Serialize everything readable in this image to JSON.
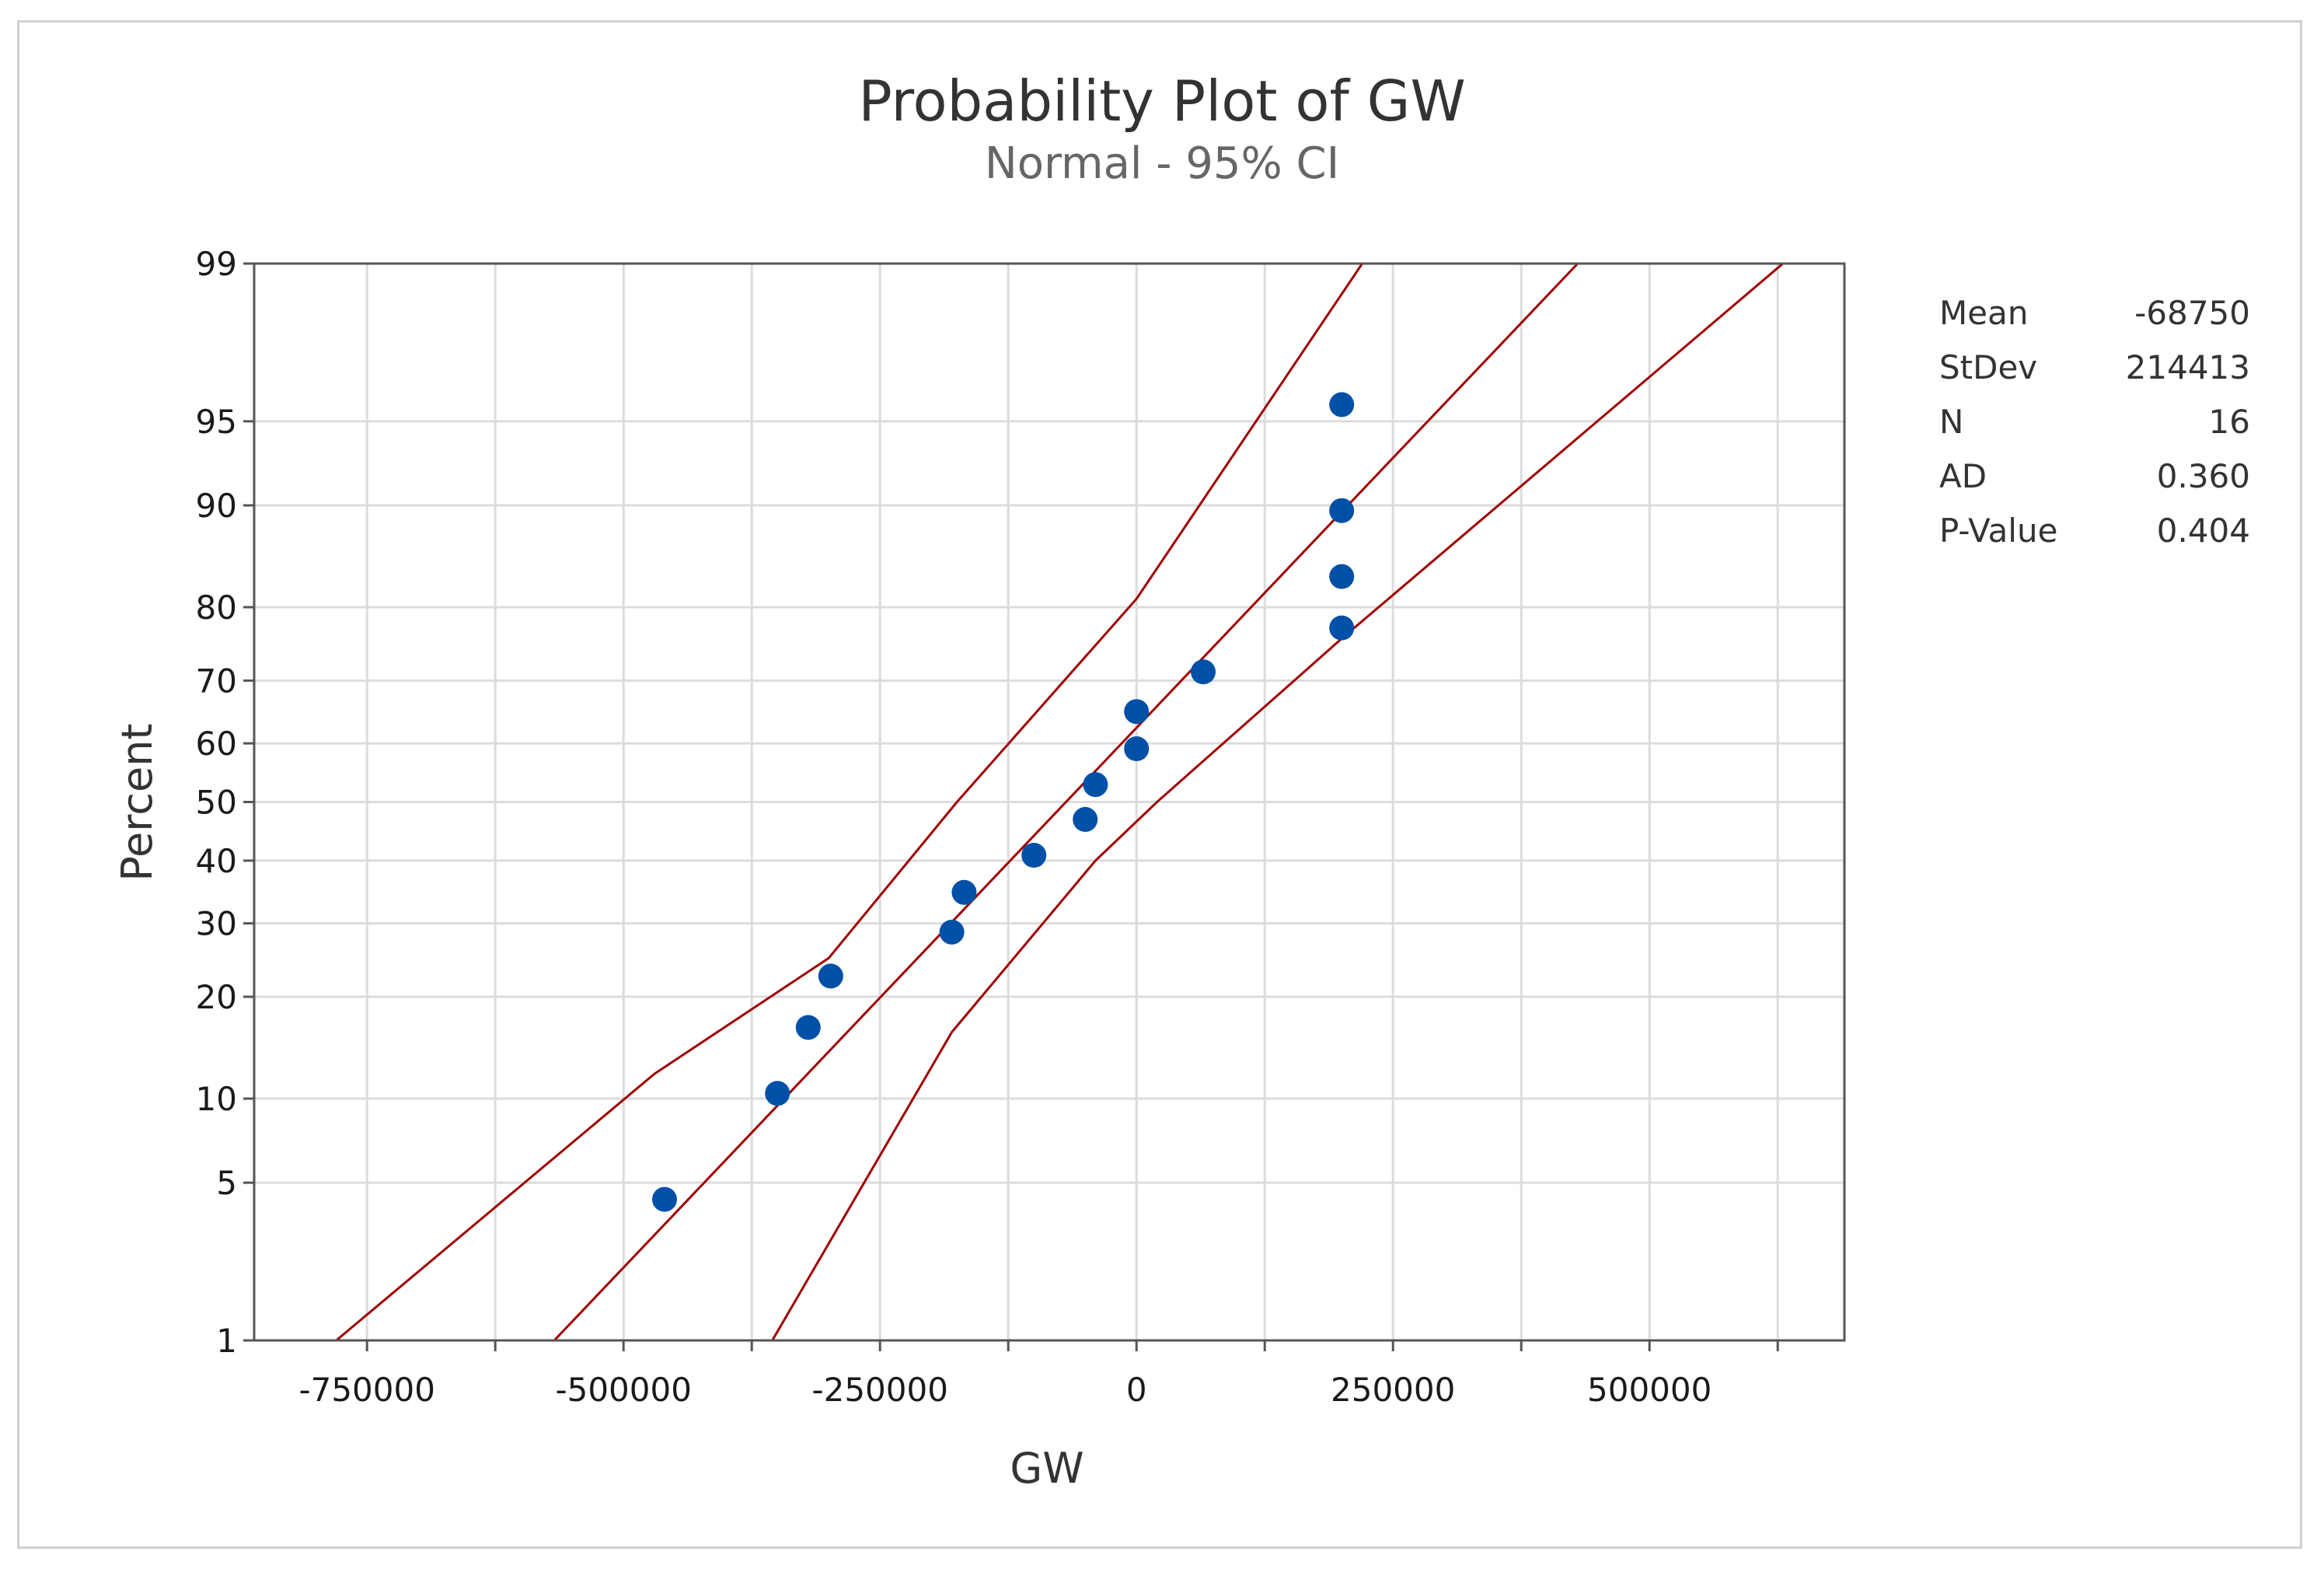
{
  "chart_data": {
    "type": "scatter",
    "title": "Probability Plot of GW",
    "subtitle": "Normal - 95% CI",
    "xlabel": "GW",
    "ylabel": "Percent",
    "y_scale": "normal-probability",
    "xlim": [
      -860000,
      690000
    ],
    "ylim": [
      1,
      99
    ],
    "x_ticks": [
      -750000,
      -500000,
      -250000,
      0,
      250000,
      500000
    ],
    "x_tick_labels": [
      "-750000",
      "-500000",
      "-250000",
      "0",
      "250000",
      "500000"
    ],
    "y_ticks": [
      1,
      5,
      10,
      20,
      30,
      40,
      50,
      60,
      70,
      80,
      90,
      95,
      99
    ],
    "y_tick_labels": [
      "1",
      "5",
      "10",
      "20",
      "30",
      "40",
      "50",
      "60",
      "70",
      "80",
      "90",
      "95",
      "99"
    ],
    "grid": true,
    "series": [
      {
        "points": [
          {
            "x": -460000,
            "y": 4.3
          },
          {
            "x": -350000,
            "y": 10.4
          },
          {
            "x": -320000,
            "y": 16.5
          },
          {
            "x": -298000,
            "y": 22.6
          },
          {
            "x": -180000,
            "y": 28.7
          },
          {
            "x": -168000,
            "y": 34.8
          },
          {
            "x": -100000,
            "y": 40.9
          },
          {
            "x": -50000,
            "y": 47.0
          },
          {
            "x": -40000,
            "y": 53.0
          },
          {
            "x": 0,
            "y": 59.1
          },
          {
            "x": 0,
            "y": 65.2
          },
          {
            "x": 65000,
            "y": 71.3
          },
          {
            "x": 200000,
            "y": 77.4
          },
          {
            "x": 200000,
            "y": 83.5
          },
          {
            "x": 200000,
            "y": 89.6
          },
          {
            "x": 200000,
            "y": 95.7
          }
        ],
        "color": "#0050a8"
      }
    ],
    "fit_line": {
      "x_at_p1": -567500,
      "x_at_p99": 430000,
      "color": "#a00000"
    },
    "ci_lower_band": [
      [
        -780000,
        1
      ],
      [
        -470000,
        12
      ],
      [
        -300000,
        25
      ],
      [
        -175000,
        50
      ],
      [
        0,
        81
      ],
      [
        220000,
        99
      ]
    ],
    "ci_upper_band": [
      [
        -355000,
        1
      ],
      [
        -180000,
        16
      ],
      [
        -40000,
        40
      ],
      [
        20000,
        50
      ],
      [
        200000,
        76
      ],
      [
        630000,
        99
      ]
    ],
    "stats": [
      {
        "label": "Mean",
        "value": "-68750"
      },
      {
        "label": "StDev",
        "value": "214413"
      },
      {
        "label": "N",
        "value": "16"
      },
      {
        "label": "AD",
        "value": "0.360"
      },
      {
        "label": "P-Value",
        "value": "0.404"
      }
    ],
    "legend": "right"
  }
}
